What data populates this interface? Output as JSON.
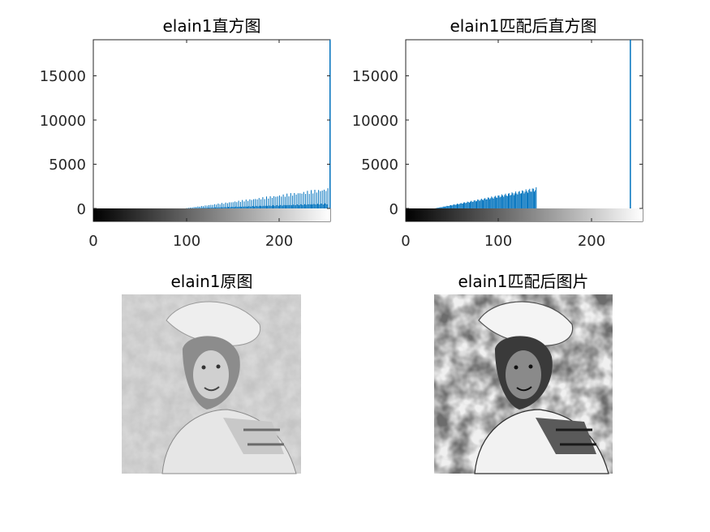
{
  "chart_data": [
    {
      "type": "bar",
      "title": "elain1直方图",
      "xlabel": "",
      "ylabel": "",
      "xlim": [
        0,
        255
      ],
      "ylim": [
        -1450,
        19000
      ],
      "x_ticks": [
        0,
        100,
        200
      ],
      "y_ticks": [
        0,
        5000,
        10000,
        15000
      ],
      "y_tick_labels": [
        "0",
        "5000",
        "10000",
        "15000"
      ],
      "x_tick_labels": [
        "0",
        "100",
        "200"
      ],
      "colorbar": "gray 0-255 below axis",
      "bar_color": "#0072BD",
      "bars": {
        "range_start": 100,
        "range_end": 252,
        "start_value": 50,
        "end_value": 2350,
        "pattern": "comb-like, alternating tall/short bins"
      },
      "spike": {
        "x": 255,
        "value": 19000
      }
    },
    {
      "type": "bar",
      "title": "elain1匹配后直方图",
      "xlabel": "",
      "ylabel": "",
      "xlim": [
        0,
        255
      ],
      "ylim": [
        -1450,
        19000
      ],
      "x_ticks": [
        0,
        100,
        200
      ],
      "y_ticks": [
        0,
        5000,
        10000,
        15000
      ],
      "y_tick_labels": [
        "0",
        "5000",
        "10000",
        "15000"
      ],
      "x_tick_labels": [
        "0",
        "100",
        "200"
      ],
      "colorbar": "gray 0-255 below axis",
      "bar_color": "#0072BD",
      "bars": {
        "range_start": 32,
        "range_end": 140,
        "start_value": 40,
        "end_value": 2400,
        "pattern": "dense"
      },
      "spike": {
        "x": 242,
        "value": 19000
      }
    }
  ],
  "images": [
    {
      "title": "elain1原图",
      "kind": "grayscale-photo",
      "style": "light, low contrast"
    },
    {
      "title": "elain1匹配后图片",
      "kind": "grayscale-photo",
      "style": "high contrast, posterized"
    }
  ]
}
